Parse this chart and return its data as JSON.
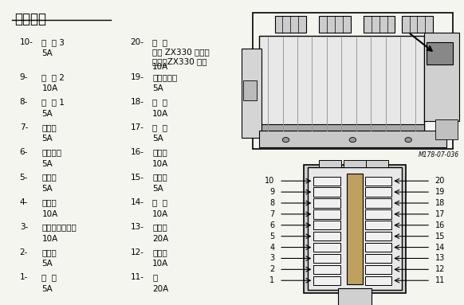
{
  "title": "保险丝盒",
  "background_color": "#f5f5f0",
  "left_items": [
    {
      "num": "10-",
      "name": "选  购 3",
      "amp": "5A"
    },
    {
      "num": "9-",
      "name": "选  购 2",
      "amp": "10A"
    },
    {
      "num": "8-",
      "name": "选  购 1",
      "amp": "5A"
    },
    {
      "num": "7-",
      "name": "空调机",
      "amp": "5A"
    },
    {
      "num": "6-",
      "name": "电源接通",
      "amp": "5A"
    },
    {
      "num": "5-",
      "name": "开关盒",
      "amp": "5A"
    },
    {
      "num": "4-",
      "name": "电磁阀",
      "amp": "10A"
    },
    {
      "num": "3-",
      "name": "发动机控制马达",
      "amp": "10A"
    },
    {
      "num": "2-",
      "name": "控制器",
      "amp": "5A"
    },
    {
      "num": "1-",
      "name": "后  备",
      "amp": "5A"
    }
  ],
  "right_items": [
    {
      "num": "20-",
      "name": "备  用\n（除 ZX330 组外）\n润滑（ZX330 组）",
      "amp": "10A"
    },
    {
      "num": "19-",
      "name": "辉光继电器",
      "amp": "5A"
    },
    {
      "num": "18-",
      "name": "补  助",
      "amp": "10A"
    },
    {
      "num": "17-",
      "name": "室  灯",
      "amp": "5A"
    },
    {
      "num": "16-",
      "name": "点烟器",
      "amp": "10A"
    },
    {
      "num": "15-",
      "name": "收音机",
      "amp": "5A"
    },
    {
      "num": "14-",
      "name": "喇  叭",
      "amp": "10A"
    },
    {
      "num": "13-",
      "name": "加热器",
      "amp": "20A"
    },
    {
      "num": "12-",
      "name": "刮水器",
      "amp": "10A"
    },
    {
      "num": "11-",
      "name": "灯",
      "amp": "20A"
    }
  ],
  "figure_code": "M178-07-036",
  "fuse_left_numbers": [
    10,
    9,
    8,
    7,
    6,
    5,
    4,
    3,
    2,
    1
  ],
  "fuse_right_numbers": [
    20,
    19,
    18,
    17,
    16,
    15,
    14,
    13,
    12,
    11
  ]
}
